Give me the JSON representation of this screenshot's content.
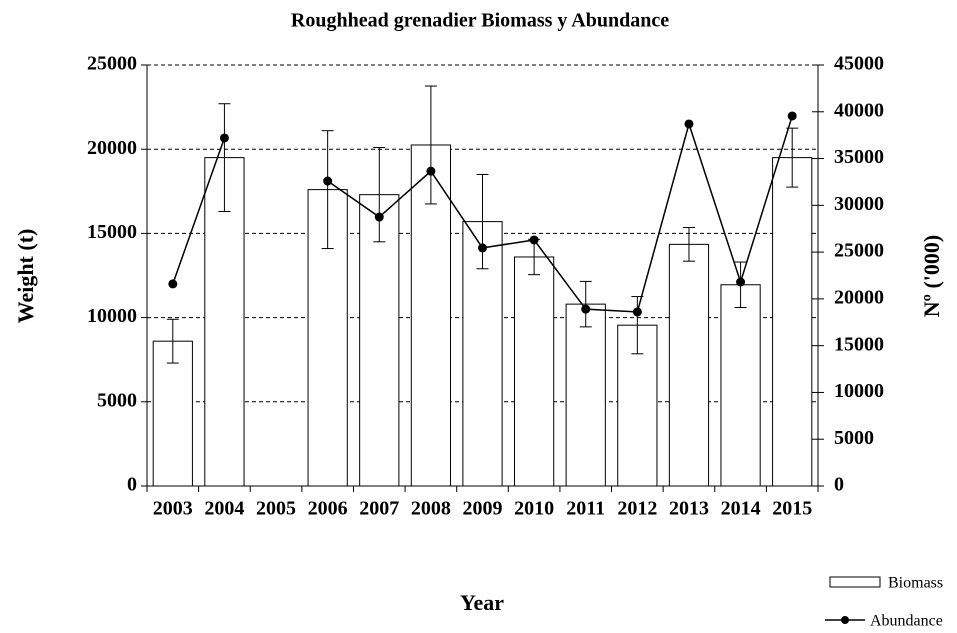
{
  "chart_data": {
    "type": "bar-line",
    "title": "Roughhead grenadier Biomass y Abundance",
    "x_label": "Year",
    "y_label": "Weight (t)",
    "y2_label": "Nº ('000)",
    "categories": [
      "2003",
      "2004",
      "2005",
      "2006",
      "2007",
      "2008",
      "2009",
      "2010",
      "2011",
      "2012",
      "2013",
      "2014",
      "2015"
    ],
    "series": [
      {
        "name": "Biomass",
        "type": "bar",
        "color": "#ffffff",
        "axis": "y",
        "values": [
          8600,
          19500,
          null,
          17600,
          17300,
          20250,
          15700,
          13600,
          10800,
          9550,
          14350,
          11950,
          19500
        ],
        "errors": [
          1300,
          3200,
          null,
          3500,
          2800,
          3500,
          2800,
          1050,
          1350,
          1700,
          1000,
          1350,
          1750
        ]
      },
      {
        "name": "Abundance",
        "type": "line",
        "color": "#000000",
        "axis": "y2",
        "values": [
          21600,
          37200,
          null,
          32600,
          28750,
          33650,
          25450,
          26300,
          18900,
          18600,
          38700,
          21800,
          39550
        ]
      }
    ],
    "ylim": [
      0,
      25000
    ],
    "yticks": [
      0,
      5000,
      10000,
      15000,
      20000,
      25000
    ],
    "y2lim": [
      0,
      45000
    ],
    "y2ticks": [
      0,
      5000,
      10000,
      15000,
      20000,
      25000,
      30000,
      35000,
      40000,
      45000
    ],
    "grid": true,
    "legend": "bottom-right"
  }
}
